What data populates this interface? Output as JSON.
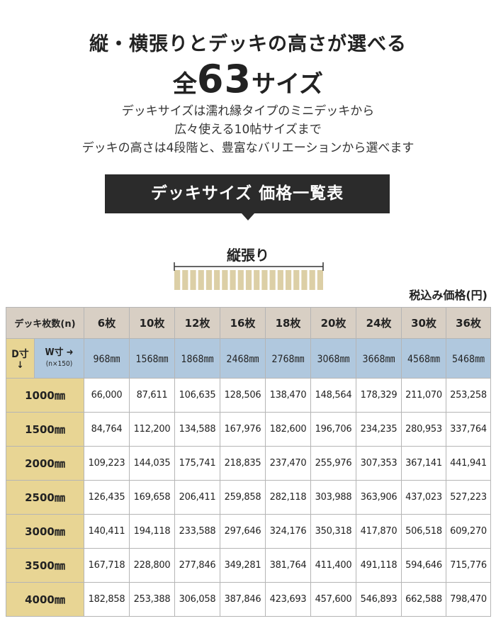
{
  "header": {
    "headline": "縦・横張りとデッキの高さが選べる",
    "title_pre": "全",
    "title_number": "63",
    "title_post": "サイズ",
    "description": [
      "デッキサイズは濡れ縁タイプのミニデッキから",
      "広々使える10帖サイズまで",
      "デッキの高さは4段階と、豊富なバリエーションから選べます"
    ]
  },
  "banner": {
    "label": "デッキサイズ 価格一覧表"
  },
  "diagram": {
    "label": "縦張り",
    "slat_color": "#dccfa6",
    "line_color": "#333333"
  },
  "price_note": "税込み価格(円)",
  "table": {
    "corner_label": "デッキ枚数(n)",
    "d_label": "D寸",
    "d_arrow": "↓",
    "w_label": "W寸",
    "w_arrow": "➜",
    "w_formula": "(n×150)",
    "panel_counts": [
      "6枚",
      "10枚",
      "12枚",
      "16枚",
      "18枚",
      "20枚",
      "24枚",
      "30枚",
      "36枚"
    ],
    "widths": [
      "968㎜",
      "1568㎜",
      "1868㎜",
      "2468㎜",
      "2768㎜",
      "3068㎜",
      "3668㎜",
      "4568㎜",
      "5468㎜"
    ],
    "rows": [
      {
        "depth": "1000㎜",
        "prices": [
          "66,000",
          "87,611",
          "106,635",
          "128,506",
          "138,470",
          "148,564",
          "178,329",
          "211,070",
          "253,258"
        ]
      },
      {
        "depth": "1500㎜",
        "prices": [
          "84,764",
          "112,200",
          "134,588",
          "167,976",
          "182,600",
          "196,706",
          "234,235",
          "280,953",
          "337,764"
        ]
      },
      {
        "depth": "2000㎜",
        "prices": [
          "109,223",
          "144,035",
          "175,741",
          "218,835",
          "237,470",
          "255,976",
          "307,353",
          "367,141",
          "441,941"
        ]
      },
      {
        "depth": "2500㎜",
        "prices": [
          "126,435",
          "169,658",
          "206,411",
          "259,858",
          "282,118",
          "303,988",
          "363,906",
          "437,023",
          "527,223"
        ]
      },
      {
        "depth": "3000㎜",
        "prices": [
          "140,411",
          "194,118",
          "233,588",
          "297,646",
          "324,176",
          "350,318",
          "417,870",
          "506,518",
          "609,270"
        ]
      },
      {
        "depth": "3500㎜",
        "prices": [
          "167,718",
          "228,800",
          "277,846",
          "349,281",
          "381,764",
          "411,400",
          "491,118",
          "594,646",
          "715,776"
        ]
      },
      {
        "depth": "4000㎜",
        "prices": [
          "182,858",
          "253,388",
          "306,058",
          "387,846",
          "423,693",
          "457,600",
          "546,893",
          "662,588",
          "798,470"
        ]
      }
    ]
  }
}
